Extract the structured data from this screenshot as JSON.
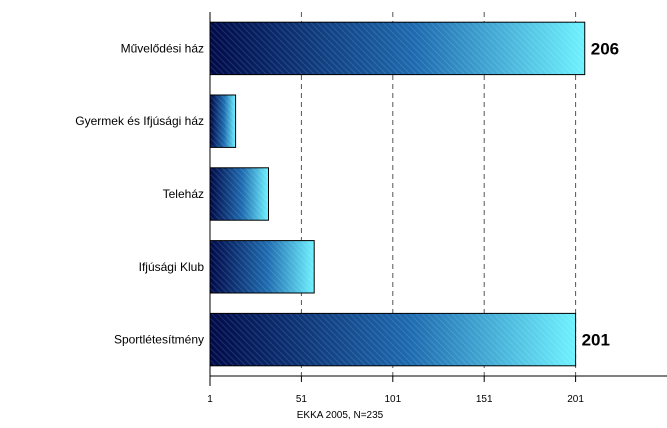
{
  "chart_data": {
    "type": "bar",
    "orientation": "horizontal",
    "categories": [
      "Művelődési ház",
      "Gyermek és Ifjúsági ház",
      "Teleház",
      "Ifjúsági Klub",
      "Sportlétesítmény"
    ],
    "values": [
      206,
      15,
      33,
      58,
      201
    ],
    "data_labels": [
      "206",
      "",
      "",
      "",
      "201"
    ],
    "xlim": [
      1,
      251
    ],
    "x_ticks": [
      "1",
      "51",
      "101",
      "151",
      "201"
    ],
    "grid": "vertical dashed",
    "legend": "none",
    "note": "EKKA 2005, N=235",
    "colors": {
      "gradient_dark": "#000a4a",
      "gradient_mid": "#1e6bb0",
      "gradient_light": "#6ef2ff",
      "grid": "#555555",
      "axis": "#000000"
    }
  }
}
